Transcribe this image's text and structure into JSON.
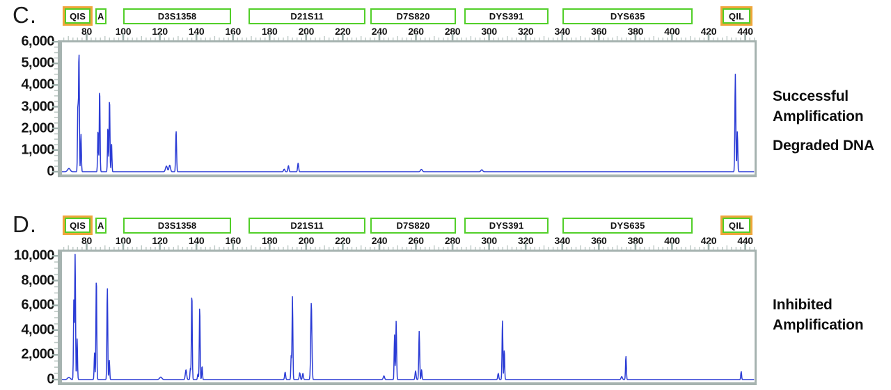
{
  "figure_type": "DNA electropherogram comparison",
  "colors": {
    "trace_blue": "#2b3cd5",
    "marker_green": "#52cf29",
    "marker_gold": "#efa53a",
    "frame_gray": "#a6b3b0",
    "tick_minor": "#bdc9c5",
    "tick_major": "#9fb0ac",
    "text": "#111111"
  },
  "chart_data": [
    {
      "type": "line",
      "panel_label": "C.",
      "title": "Successful Amplification — Degraded DNA",
      "caption_blocks": [
        [
          "Successful",
          "Amplification"
        ],
        [
          "Degraded DNA"
        ]
      ],
      "x_axis": {
        "unit": "bp",
        "min": 66.5,
        "max": 445,
        "major_tick_step": 20,
        "mid_tick_step": 10,
        "minor_tick_step": 2.5,
        "labels": [
          "80",
          "100",
          "120",
          "140",
          "160",
          "180",
          "200",
          "220",
          "240",
          "260",
          "280",
          "300",
          "320",
          "340",
          "360",
          "380",
          "400",
          "420",
          "440"
        ],
        "label_values": [
          80,
          100,
          120,
          140,
          160,
          180,
          200,
          220,
          240,
          260,
          280,
          300,
          320,
          340,
          360,
          380,
          400,
          420,
          440
        ]
      },
      "y_axis": {
        "unit": "RFU",
        "min": 0,
        "max": 6000,
        "label_step": 1000,
        "minor_tick_step": 250,
        "labels": [
          "6,000",
          "5,000",
          "4,000",
          "3,000",
          "2,000",
          "1,000",
          "0"
        ]
      },
      "markers": [
        {
          "label": "QIS",
          "style": "gold",
          "start": 68.2,
          "end": 82
        },
        {
          "label": "A",
          "style": "green",
          "start": 85,
          "end": 90.5
        },
        {
          "label": "D3S1358",
          "style": "green",
          "start": 100.5,
          "end": 158.5
        },
        {
          "label": "D21S11",
          "style": "green",
          "start": 169,
          "end": 232
        },
        {
          "label": "D7S820",
          "style": "green",
          "start": 235.5,
          "end": 281.5
        },
        {
          "label": "DYS391",
          "style": "green",
          "start": 287,
          "end": 332
        },
        {
          "label": "DYS635",
          "style": "green",
          "start": 340.5,
          "end": 411
        },
        {
          "label": "QIL",
          "style": "gold",
          "start": 427.5,
          "end": 443
        }
      ],
      "peaks": [
        {
          "x": 70.3,
          "rfu": 150,
          "w": 1.0
        },
        {
          "x": 75.2,
          "rfu": 3000,
          "w": 0.3
        },
        {
          "x": 75.8,
          "rfu": 5550,
          "w": 0.32
        },
        {
          "x": 76.9,
          "rfu": 1750,
          "w": 0.3
        },
        {
          "x": 86.2,
          "rfu": 1950,
          "w": 0.3
        },
        {
          "x": 87.1,
          "rfu": 3850,
          "w": 0.32
        },
        {
          "x": 91.6,
          "rfu": 2100,
          "w": 0.3
        },
        {
          "x": 92.5,
          "rfu": 3400,
          "w": 0.32
        },
        {
          "x": 93.6,
          "rfu": 1350,
          "w": 0.3
        },
        {
          "x": 123.6,
          "rfu": 260,
          "w": 0.7
        },
        {
          "x": 125.4,
          "rfu": 300,
          "w": 0.6
        },
        {
          "x": 128.9,
          "rfu": 1900,
          "w": 0.35
        },
        {
          "x": 188.0,
          "rfu": 120,
          "w": 0.5
        },
        {
          "x": 190.3,
          "rfu": 280,
          "w": 0.4
        },
        {
          "x": 195.6,
          "rfu": 400,
          "w": 0.4
        },
        {
          "x": 263.0,
          "rfu": 110,
          "w": 0.7
        },
        {
          "x": 296.0,
          "rfu": 90,
          "w": 0.7
        },
        {
          "x": 434.6,
          "rfu": 4500,
          "w": 0.35
        },
        {
          "x": 435.7,
          "rfu": 1850,
          "w": 0.32
        }
      ]
    },
    {
      "type": "line",
      "panel_label": "D.",
      "title": "Inhibited Amplification",
      "caption_blocks": [
        [
          "Inhibited",
          "Amplification"
        ]
      ],
      "x_axis": {
        "unit": "bp",
        "min": 66.5,
        "max": 445,
        "major_tick_step": 20,
        "mid_tick_step": 10,
        "minor_tick_step": 2.5,
        "labels": [
          "80",
          "100",
          "120",
          "140",
          "160",
          "180",
          "200",
          "220",
          "240",
          "260",
          "280",
          "300",
          "320",
          "340",
          "360",
          "380",
          "400",
          "420",
          "440"
        ],
        "label_values": [
          80,
          100,
          120,
          140,
          160,
          180,
          200,
          220,
          240,
          260,
          280,
          300,
          320,
          340,
          360,
          380,
          400,
          420,
          440
        ]
      },
      "y_axis": {
        "unit": "RFU",
        "min": 0,
        "max": 10000,
        "label_step": 2000,
        "minor_tick_step": 500,
        "labels": [
          "10,000",
          "8,000",
          "6,000",
          "4,000",
          "2,000",
          "0"
        ]
      },
      "markers": [
        {
          "label": "QIS",
          "style": "gold",
          "start": 68.2,
          "end": 82
        },
        {
          "label": "A",
          "style": "green",
          "start": 85,
          "end": 90.5
        },
        {
          "label": "D3S1358",
          "style": "green",
          "start": 100.5,
          "end": 158.5
        },
        {
          "label": "D21S11",
          "style": "green",
          "start": 169,
          "end": 232
        },
        {
          "label": "D7S820",
          "style": "green",
          "start": 235.5,
          "end": 281.5
        },
        {
          "label": "DYS391",
          "style": "green",
          "start": 287,
          "end": 332
        },
        {
          "label": "DYS635",
          "style": "green",
          "start": 340.5,
          "end": 411
        },
        {
          "label": "QIL",
          "style": "gold",
          "start": 427.5,
          "end": 443
        }
      ],
      "peaks": [
        {
          "x": 70.3,
          "rfu": 180,
          "w": 1.0
        },
        {
          "x": 73.0,
          "rfu": 6400,
          "w": 0.3
        },
        {
          "x": 73.7,
          "rfu": 10100,
          "w": 0.32
        },
        {
          "x": 74.8,
          "rfu": 3300,
          "w": 0.3
        },
        {
          "x": 84.3,
          "rfu": 2150,
          "w": 0.3
        },
        {
          "x": 85.3,
          "rfu": 8300,
          "w": 0.32
        },
        {
          "x": 91.3,
          "rfu": 7450,
          "w": 0.32
        },
        {
          "x": 92.4,
          "rfu": 1550,
          "w": 0.3
        },
        {
          "x": 120.5,
          "rfu": 200,
          "w": 0.9
        },
        {
          "x": 134.3,
          "rfu": 800,
          "w": 0.5
        },
        {
          "x": 136.7,
          "rfu": 900,
          "w": 0.3
        },
        {
          "x": 137.5,
          "rfu": 7000,
          "w": 0.32
        },
        {
          "x": 140.8,
          "rfu": 450,
          "w": 0.3
        },
        {
          "x": 141.8,
          "rfu": 5900,
          "w": 0.32
        },
        {
          "x": 143.1,
          "rfu": 1100,
          "w": 0.3
        },
        {
          "x": 188.5,
          "rfu": 600,
          "w": 0.4
        },
        {
          "x": 191.8,
          "rfu": 1900,
          "w": 0.28
        },
        {
          "x": 192.5,
          "rfu": 6700,
          "w": 0.32
        },
        {
          "x": 196.5,
          "rfu": 550,
          "w": 0.4
        },
        {
          "x": 198.2,
          "rfu": 500,
          "w": 0.4
        },
        {
          "x": 202.8,
          "rfu": 6200,
          "w": 0.45
        },
        {
          "x": 242.5,
          "rfu": 300,
          "w": 0.5
        },
        {
          "x": 248.3,
          "rfu": 3600,
          "w": 0.3
        },
        {
          "x": 249.2,
          "rfu": 4700,
          "w": 0.32
        },
        {
          "x": 259.8,
          "rfu": 700,
          "w": 0.4
        },
        {
          "x": 261.8,
          "rfu": 3900,
          "w": 0.35
        },
        {
          "x": 263.1,
          "rfu": 800,
          "w": 0.3
        },
        {
          "x": 305.0,
          "rfu": 500,
          "w": 0.4
        },
        {
          "x": 307.3,
          "rfu": 4800,
          "w": 0.32
        },
        {
          "x": 308.3,
          "rfu": 2400,
          "w": 0.3
        },
        {
          "x": 372.5,
          "rfu": 250,
          "w": 0.5
        },
        {
          "x": 374.8,
          "rfu": 1900,
          "w": 0.32
        },
        {
          "x": 437.8,
          "rfu": 650,
          "w": 0.32
        }
      ]
    }
  ]
}
